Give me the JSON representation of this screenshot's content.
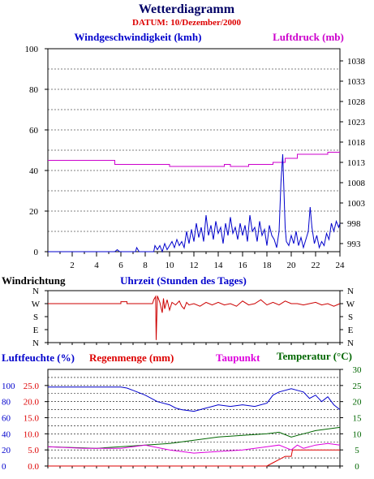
{
  "title": "Wetterdiagramm",
  "datum": "DATUM: 10/Dezember/2000",
  "colors": {
    "wind": "#0000cc",
    "pressure": "#cc00cc",
    "direction": "#cc0000",
    "humidity": "#0000cc",
    "rain": "#dd0000",
    "dewpoint": "#dd00dd",
    "temperature": "#006600",
    "title": "#000066",
    "datum": "#dd0000"
  },
  "chart_data": [
    {
      "type": "line",
      "panel": "wind_pressure",
      "x_ticks": [
        "2",
        "4",
        "6",
        "8",
        "10",
        "12",
        "14",
        "16",
        "18",
        "20",
        "22",
        "24"
      ],
      "xlim": [
        0,
        24
      ],
      "left_axis": {
        "label": "Windgeschwindigkeit (kmh)",
        "ticks": [
          "0",
          "20",
          "40",
          "60",
          "80",
          "100"
        ],
        "range": [
          0,
          100
        ]
      },
      "right_axis": {
        "label": "Luftdruck (mb)",
        "ticks": [
          "993",
          "998",
          "1003",
          "1008",
          "1013",
          "1018",
          "1023",
          "1028",
          "1033",
          "1038"
        ],
        "range": [
          991,
          1041
        ]
      },
      "grid": true,
      "series": [
        {
          "name": "Windgeschwindigkeit (kmh)",
          "axis": "left",
          "points": [
            [
              0,
              0
            ],
            [
              5.5,
              0
            ],
            [
              5.7,
              1
            ],
            [
              5.9,
              0
            ],
            [
              7.2,
              0
            ],
            [
              7.3,
              2
            ],
            [
              7.5,
              0
            ],
            [
              8.7,
              0
            ],
            [
              8.8,
              3
            ],
            [
              9,
              1
            ],
            [
              9.2,
              3
            ],
            [
              9.4,
              0
            ],
            [
              9.6,
              4
            ],
            [
              9.8,
              1
            ],
            [
              10,
              3
            ],
            [
              10.2,
              5
            ],
            [
              10.4,
              2
            ],
            [
              10.6,
              6
            ],
            [
              10.8,
              3
            ],
            [
              11,
              5
            ],
            [
              11.2,
              2
            ],
            [
              11.4,
              10
            ],
            [
              11.6,
              4
            ],
            [
              11.8,
              11
            ],
            [
              12,
              5
            ],
            [
              12.2,
              14
            ],
            [
              12.4,
              7
            ],
            [
              12.6,
              12
            ],
            [
              12.8,
              5
            ],
            [
              13,
              18
            ],
            [
              13.2,
              8
            ],
            [
              13.4,
              13
            ],
            [
              13.6,
              6
            ],
            [
              13.8,
              15
            ],
            [
              14,
              9
            ],
            [
              14.2,
              12
            ],
            [
              14.4,
              4
            ],
            [
              14.6,
              14
            ],
            [
              14.8,
              8
            ],
            [
              15,
              17
            ],
            [
              15.2,
              9
            ],
            [
              15.4,
              12
            ],
            [
              15.6,
              6
            ],
            [
              15.8,
              14
            ],
            [
              16,
              8
            ],
            [
              16.2,
              13
            ],
            [
              16.4,
              5
            ],
            [
              16.6,
              18
            ],
            [
              16.8,
              10
            ],
            [
              17,
              12
            ],
            [
              17.2,
              5
            ],
            [
              17.4,
              15
            ],
            [
              17.6,
              8
            ],
            [
              17.8,
              11
            ],
            [
              18,
              3
            ],
            [
              18.2,
              13
            ],
            [
              18.4,
              8
            ],
            [
              18.6,
              6
            ],
            [
              18.8,
              2
            ],
            [
              19,
              10
            ],
            [
              19.15,
              34
            ],
            [
              19.3,
              48
            ],
            [
              19.4,
              30
            ],
            [
              19.5,
              12
            ],
            [
              19.6,
              5
            ],
            [
              19.8,
              3
            ],
            [
              20,
              8
            ],
            [
              20.2,
              4
            ],
            [
              20.4,
              10
            ],
            [
              20.6,
              3
            ],
            [
              20.8,
              7
            ],
            [
              21,
              2
            ],
            [
              21.2,
              6
            ],
            [
              21.4,
              10
            ],
            [
              21.55,
              22
            ],
            [
              21.7,
              12
            ],
            [
              21.9,
              4
            ],
            [
              22.1,
              8
            ],
            [
              22.3,
              2
            ],
            [
              22.5,
              5
            ],
            [
              22.7,
              3
            ],
            [
              22.9,
              9
            ],
            [
              23.1,
              6
            ],
            [
              23.3,
              14
            ],
            [
              23.5,
              10
            ],
            [
              23.7,
              15
            ],
            [
              23.9,
              12
            ],
            [
              24,
              14
            ]
          ]
        },
        {
          "name": "Luftdruck (mb)",
          "axis": "right",
          "points": [
            [
              0,
              1013.5
            ],
            [
              5.5,
              1013.5
            ],
            [
              5.5,
              1012.5
            ],
            [
              10,
              1012.5
            ],
            [
              10,
              1012
            ],
            [
              14.5,
              1012
            ],
            [
              14.5,
              1012.5
            ],
            [
              15,
              1012.5
            ],
            [
              15,
              1012
            ],
            [
              16.5,
              1012
            ],
            [
              16.5,
              1012.5
            ],
            [
              18.5,
              1012.5
            ],
            [
              18.5,
              1013
            ],
            [
              19.5,
              1013
            ],
            [
              19.5,
              1014
            ],
            [
              20.5,
              1014
            ],
            [
              20.5,
              1015
            ],
            [
              23,
              1015
            ],
            [
              23,
              1015.5
            ],
            [
              24,
              1015.5
            ]
          ]
        }
      ]
    },
    {
      "type": "line",
      "panel": "wind_direction",
      "title": "Windrichtung",
      "xlabel": "Uhrzeit (Stunden des Tages)",
      "y_ticks": [
        "N",
        "W",
        "S",
        "E",
        "N"
      ],
      "xlim": [
        0,
        24
      ],
      "series": [
        {
          "name": "Windrichtung",
          "points": [
            [
              0,
              3
            ],
            [
              6,
              3
            ],
            [
              6,
              3.15
            ],
            [
              6.5,
              3.15
            ],
            [
              6.5,
              3
            ],
            [
              8.6,
              3
            ],
            [
              8.7,
              3.3
            ],
            [
              8.85,
              3.55
            ],
            [
              8.9,
              0.2
            ],
            [
              9,
              3.6
            ],
            [
              9.2,
              3.1
            ],
            [
              9.4,
              2.3
            ],
            [
              9.5,
              3.4
            ],
            [
              9.6,
              2.6
            ],
            [
              9.8,
              3.3
            ],
            [
              10,
              2.5
            ],
            [
              10.2,
              3.1
            ],
            [
              10.5,
              2.9
            ],
            [
              10.8,
              3.2
            ],
            [
              11,
              2.8
            ],
            [
              11.2,
              2.6
            ],
            [
              11.4,
              3.1
            ],
            [
              11.6,
              2.9
            ],
            [
              12,
              3
            ],
            [
              12.5,
              2.8
            ],
            [
              13,
              3.1
            ],
            [
              13.5,
              2.9
            ],
            [
              14,
              3.1
            ],
            [
              14.5,
              2.9
            ],
            [
              15,
              3
            ],
            [
              15.5,
              2.8
            ],
            [
              16,
              3.2
            ],
            [
              16.5,
              2.9
            ],
            [
              17,
              3
            ],
            [
              17.5,
              3.3
            ],
            [
              18,
              2.9
            ],
            [
              18.5,
              3.1
            ],
            [
              19,
              2.9
            ],
            [
              19.5,
              3.2
            ],
            [
              20,
              3
            ],
            [
              20.5,
              3
            ],
            [
              21,
              2.9
            ],
            [
              21.5,
              3
            ],
            [
              22,
              3.1
            ],
            [
              22.5,
              2.9
            ],
            [
              23,
              3
            ],
            [
              23.5,
              2.8
            ],
            [
              24,
              3
            ]
          ]
        }
      ]
    },
    {
      "type": "line",
      "panel": "humidity_rain_temp",
      "xlim": [
        0,
        24
      ],
      "legend": [
        "Luftfeuchte (%)",
        "Regenmenge (mm)",
        "Taupunkt",
        "Temperatur (°C)"
      ],
      "left_axis_humidity": {
        "ticks": [
          "0",
          "20",
          "40",
          "60",
          "80",
          "100"
        ]
      },
      "left_axis_rain": {
        "ticks": [
          "0.0",
          "5.0",
          "10.0",
          "15.0",
          "20.0",
          "25.0"
        ],
        "range": [
          0,
          30
        ]
      },
      "right_axis": {
        "ticks": [
          "0",
          "5",
          "10",
          "15",
          "20",
          "25",
          "30"
        ],
        "range": [
          0,
          30
        ]
      },
      "grid": true,
      "series": [
        {
          "name": "Luftfeuchte (%)",
          "points": [
            [
              0,
              24.5
            ],
            [
              6,
              24.5
            ],
            [
              6.5,
              24.2
            ],
            [
              7,
              23.5
            ],
            [
              8,
              22
            ],
            [
              9,
              20
            ],
            [
              10,
              19
            ],
            [
              10.5,
              18
            ],
            [
              11,
              17.5
            ],
            [
              12,
              17
            ],
            [
              13,
              18
            ],
            [
              14,
              19
            ],
            [
              15,
              18.5
            ],
            [
              16,
              19
            ],
            [
              17,
              18.5
            ],
            [
              18,
              19.5
            ],
            [
              18.5,
              22
            ],
            [
              19,
              23
            ],
            [
              20,
              24
            ],
            [
              20.5,
              23.5
            ],
            [
              21,
              23
            ],
            [
              21.5,
              21
            ],
            [
              22,
              22
            ],
            [
              22.5,
              20
            ],
            [
              23,
              21.5
            ],
            [
              23.5,
              19
            ],
            [
              24,
              17.5
            ]
          ]
        },
        {
          "name": "Regenmenge (mm)",
          "points": [
            [
              0,
              0
            ],
            [
              18,
              0
            ],
            [
              18.5,
              1
            ],
            [
              19,
              2
            ],
            [
              19.5,
              3
            ],
            [
              20,
              3
            ],
            [
              20.1,
              5
            ],
            [
              24,
              5
            ]
          ]
        },
        {
          "name": "Taupunkt",
          "points": [
            [
              0,
              6
            ],
            [
              3,
              5.5
            ],
            [
              6,
              5.5
            ],
            [
              8,
              6.5
            ],
            [
              10,
              5
            ],
            [
              12,
              4
            ],
            [
              14,
              4.5
            ],
            [
              16,
              5
            ],
            [
              18,
              6
            ],
            [
              19,
              6.5
            ],
            [
              20,
              5
            ],
            [
              20.5,
              6.5
            ],
            [
              21,
              5.5
            ],
            [
              22,
              6.5
            ],
            [
              23,
              7
            ],
            [
              24,
              6.5
            ]
          ]
        },
        {
          "name": "Temperatur (°C)",
          "points": [
            [
              0,
              6
            ],
            [
              4,
              5.5
            ],
            [
              6,
              6
            ],
            [
              8,
              6.5
            ],
            [
              10,
              7
            ],
            [
              12,
              8
            ],
            [
              14,
              9
            ],
            [
              16,
              9.5
            ],
            [
              18,
              10
            ],
            [
              19,
              10.5
            ],
            [
              20,
              9
            ],
            [
              21,
              10
            ],
            [
              22,
              11
            ],
            [
              23,
              11.5
            ],
            [
              24,
              12
            ]
          ]
        }
      ]
    }
  ]
}
